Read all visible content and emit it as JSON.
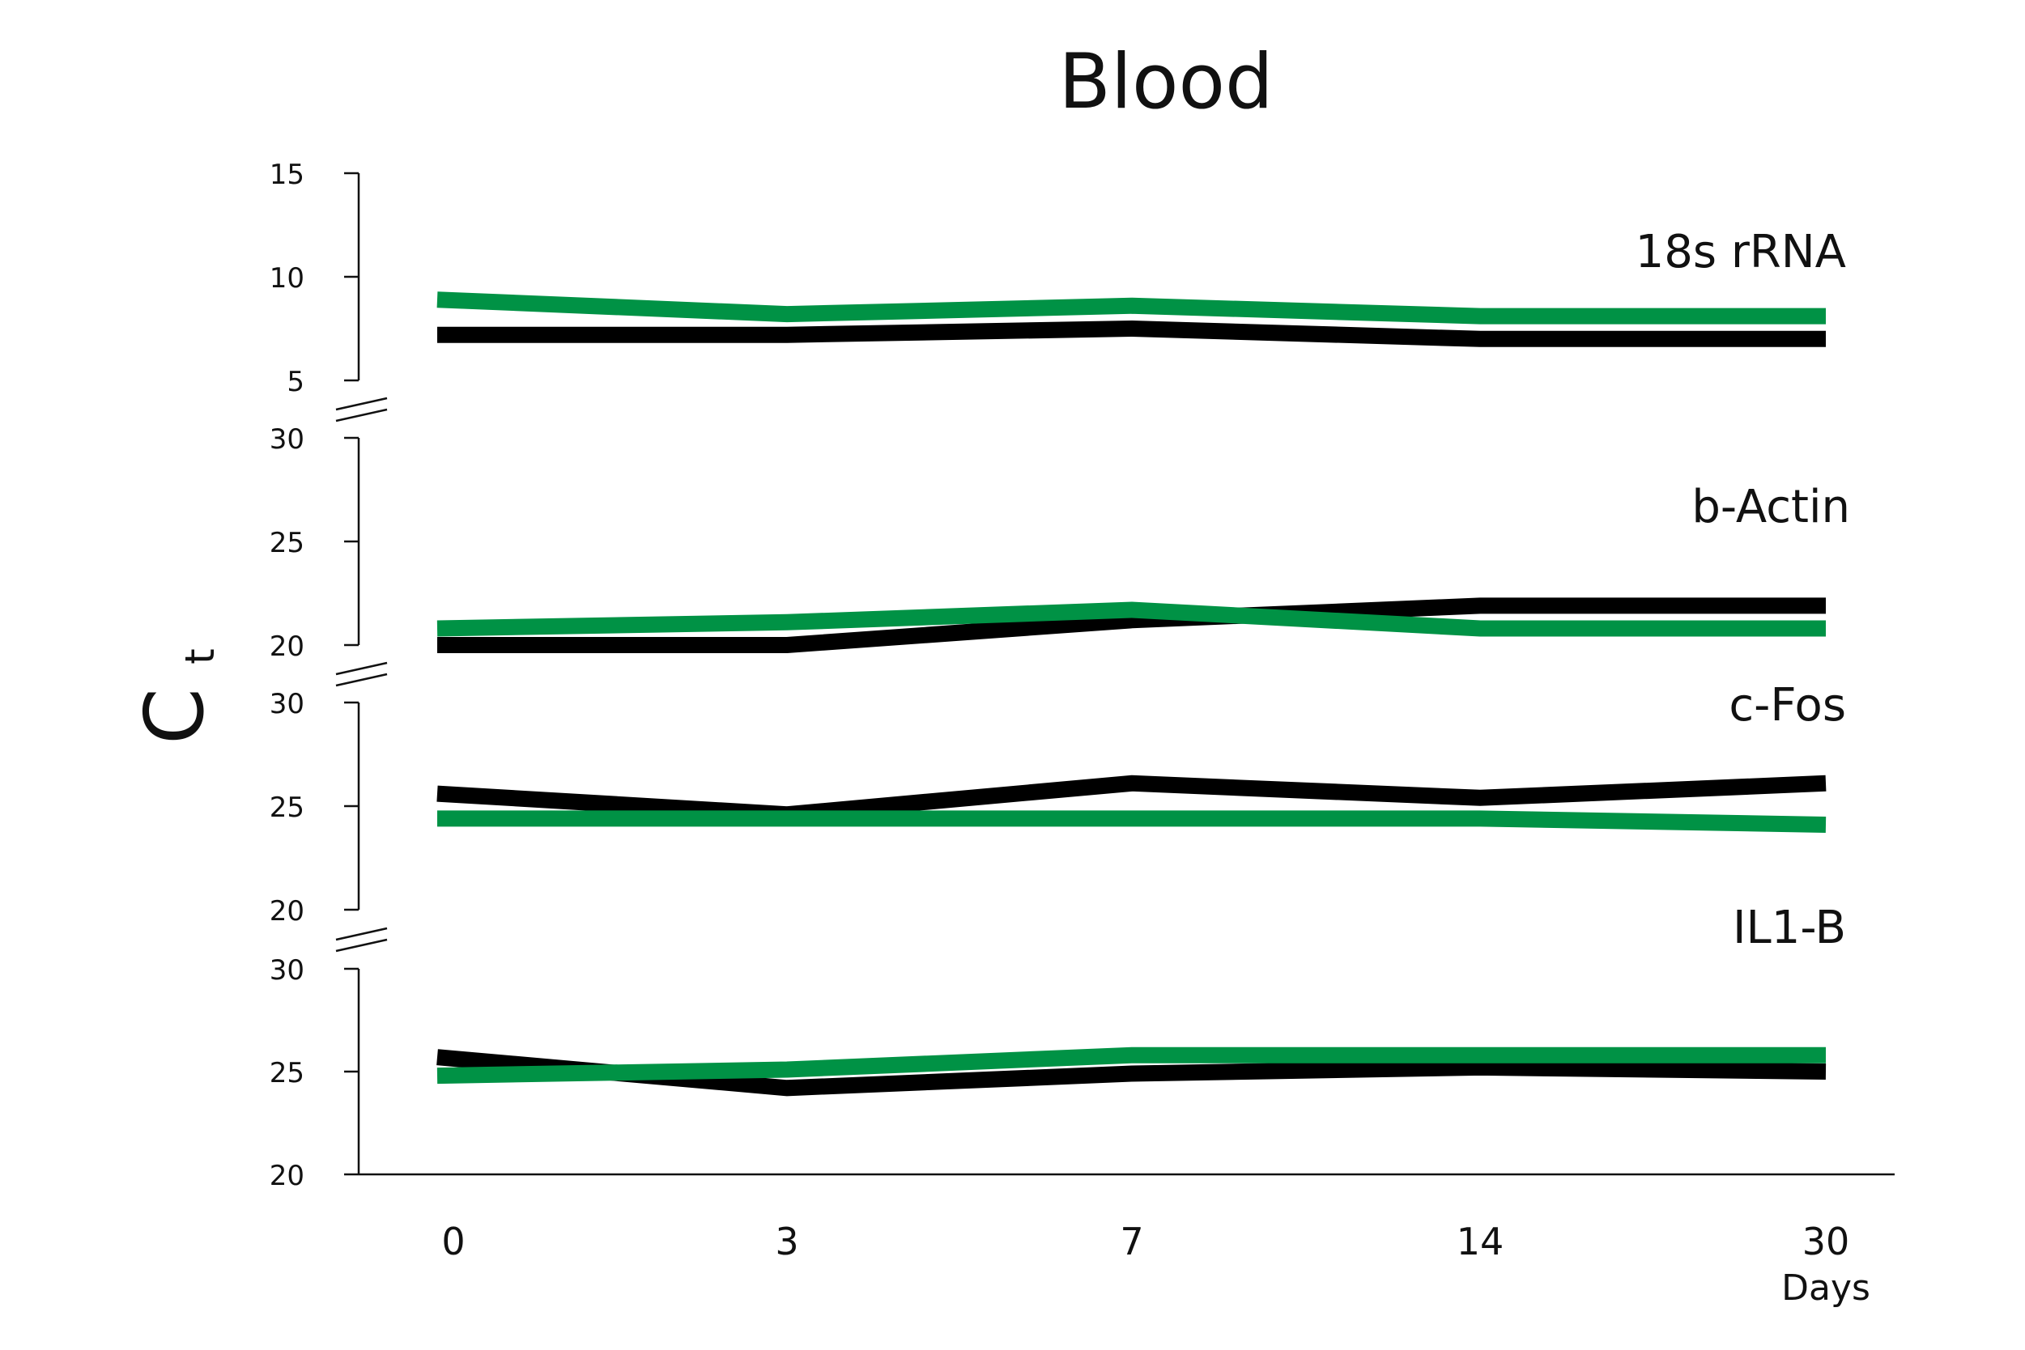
{
  "chart_data": {
    "type": "line",
    "title": "Blood",
    "ylabel": "C",
    "ylabel_subscript": "t",
    "xlabel": "Days",
    "categories": [
      "0",
      "3",
      "7",
      "14",
      "30"
    ],
    "colors": {
      "series_a": "#000000",
      "series_b": "#009245"
    },
    "panels": [
      {
        "label": "18s rRNA",
        "ylim": [
          5,
          15
        ],
        "yticks": [
          5,
          10,
          15
        ],
        "series": [
          {
            "color": "#000000",
            "values": [
              7.2,
              7.2,
              7.5,
              7.0,
              7.0
            ]
          },
          {
            "color": "#009245",
            "values": [
              8.9,
              8.2,
              8.6,
              8.1,
              8.1
            ]
          }
        ]
      },
      {
        "label": "b-Actin",
        "ylim": [
          20,
          30
        ],
        "yticks": [
          20,
          25,
          30
        ],
        "series": [
          {
            "color": "#000000",
            "values": [
              20.0,
              20.0,
              21.2,
              21.9,
              21.9
            ]
          },
          {
            "color": "#009245",
            "values": [
              20.8,
              21.1,
              21.7,
              20.8,
              20.8
            ]
          }
        ]
      },
      {
        "label": "c-Fos",
        "ylim": [
          20,
          30
        ],
        "yticks": [
          20,
          25,
          30
        ],
        "series": [
          {
            "color": "#000000",
            "values": [
              25.6,
              24.6,
              26.1,
              25.4,
              26.1
            ]
          },
          {
            "color": "#009245",
            "values": [
              24.4,
              24.4,
              24.4,
              24.4,
              24.1
            ]
          }
        ]
      },
      {
        "label": "IL1-B",
        "ylim": [
          20,
          30
        ],
        "yticks": [
          20,
          25,
          30
        ],
        "series": [
          {
            "color": "#000000",
            "values": [
              25.7,
              24.2,
              24.9,
              25.2,
              25.0
            ]
          },
          {
            "color": "#009245",
            "values": [
              24.8,
              25.1,
              25.8,
              25.8,
              25.8
            ]
          }
        ]
      }
    ]
  }
}
